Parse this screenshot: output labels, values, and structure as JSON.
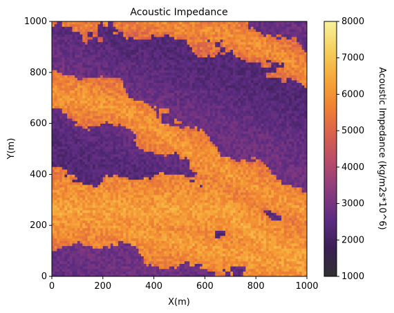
{
  "chart_data": {
    "type": "heatmap",
    "title": "Acoustic Impedance",
    "xlabel": "X(m)",
    "ylabel": "Y(m)",
    "xlim": [
      0,
      1000
    ],
    "ylim": [
      0,
      1000
    ],
    "xticks": [
      "0",
      "200",
      "400",
      "600",
      "800",
      "1000"
    ],
    "yticks": [
      "0",
      "200",
      "400",
      "600",
      "800",
      "1000"
    ],
    "colorbar": {
      "label": "Acoustic Impedance (kg/m2s*10^6)",
      "range": [
        1000,
        8000
      ],
      "ticks": [
        "1000",
        "2000",
        "3000",
        "4000",
        "5000",
        "6000",
        "7000",
        "8000"
      ],
      "colormap": "inferno",
      "colors": [
        "#303030",
        "#3b1f54",
        "#5c2c82",
        "#8a3b7e",
        "#b54a6c",
        "#d8604e",
        "#ef8332",
        "#f7a83a",
        "#f5d05e",
        "#f8f29a"
      ]
    },
    "grid": false,
    "grid_cells": 100,
    "high_impedance_bands": [
      {
        "x": [
          0,
          120,
          260,
          380,
          500,
          640,
          760,
          1000
        ],
        "y": [
          720,
          700,
          660,
          600,
          520,
          440,
          360,
          260
        ],
        "half_width": 80,
        "level": 5900
      },
      {
        "x": [
          0,
          100,
          200,
          300,
          400,
          500,
          600,
          700,
          800,
          900,
          1000
        ],
        "y": [
          290,
          260,
          220,
          180,
          150,
          130,
          110,
          90,
          70,
          50,
          30
        ],
        "half_width": 85,
        "level": 6000
      },
      {
        "x": [
          350,
          450,
          550,
          650,
          750,
          850,
          950,
          1000
        ],
        "y": [
          1030,
          1000,
          980,
          960,
          930,
          890,
          830,
          800
        ],
        "half_width": 70,
        "level": 5700
      },
      {
        "x": [
          680,
          750,
          820,
          900,
          1000
        ],
        "y": [
          260,
          200,
          150,
          100,
          60
        ],
        "half_width": 130,
        "level": 6100
      }
    ],
    "low_impedance_level": 2600
  }
}
